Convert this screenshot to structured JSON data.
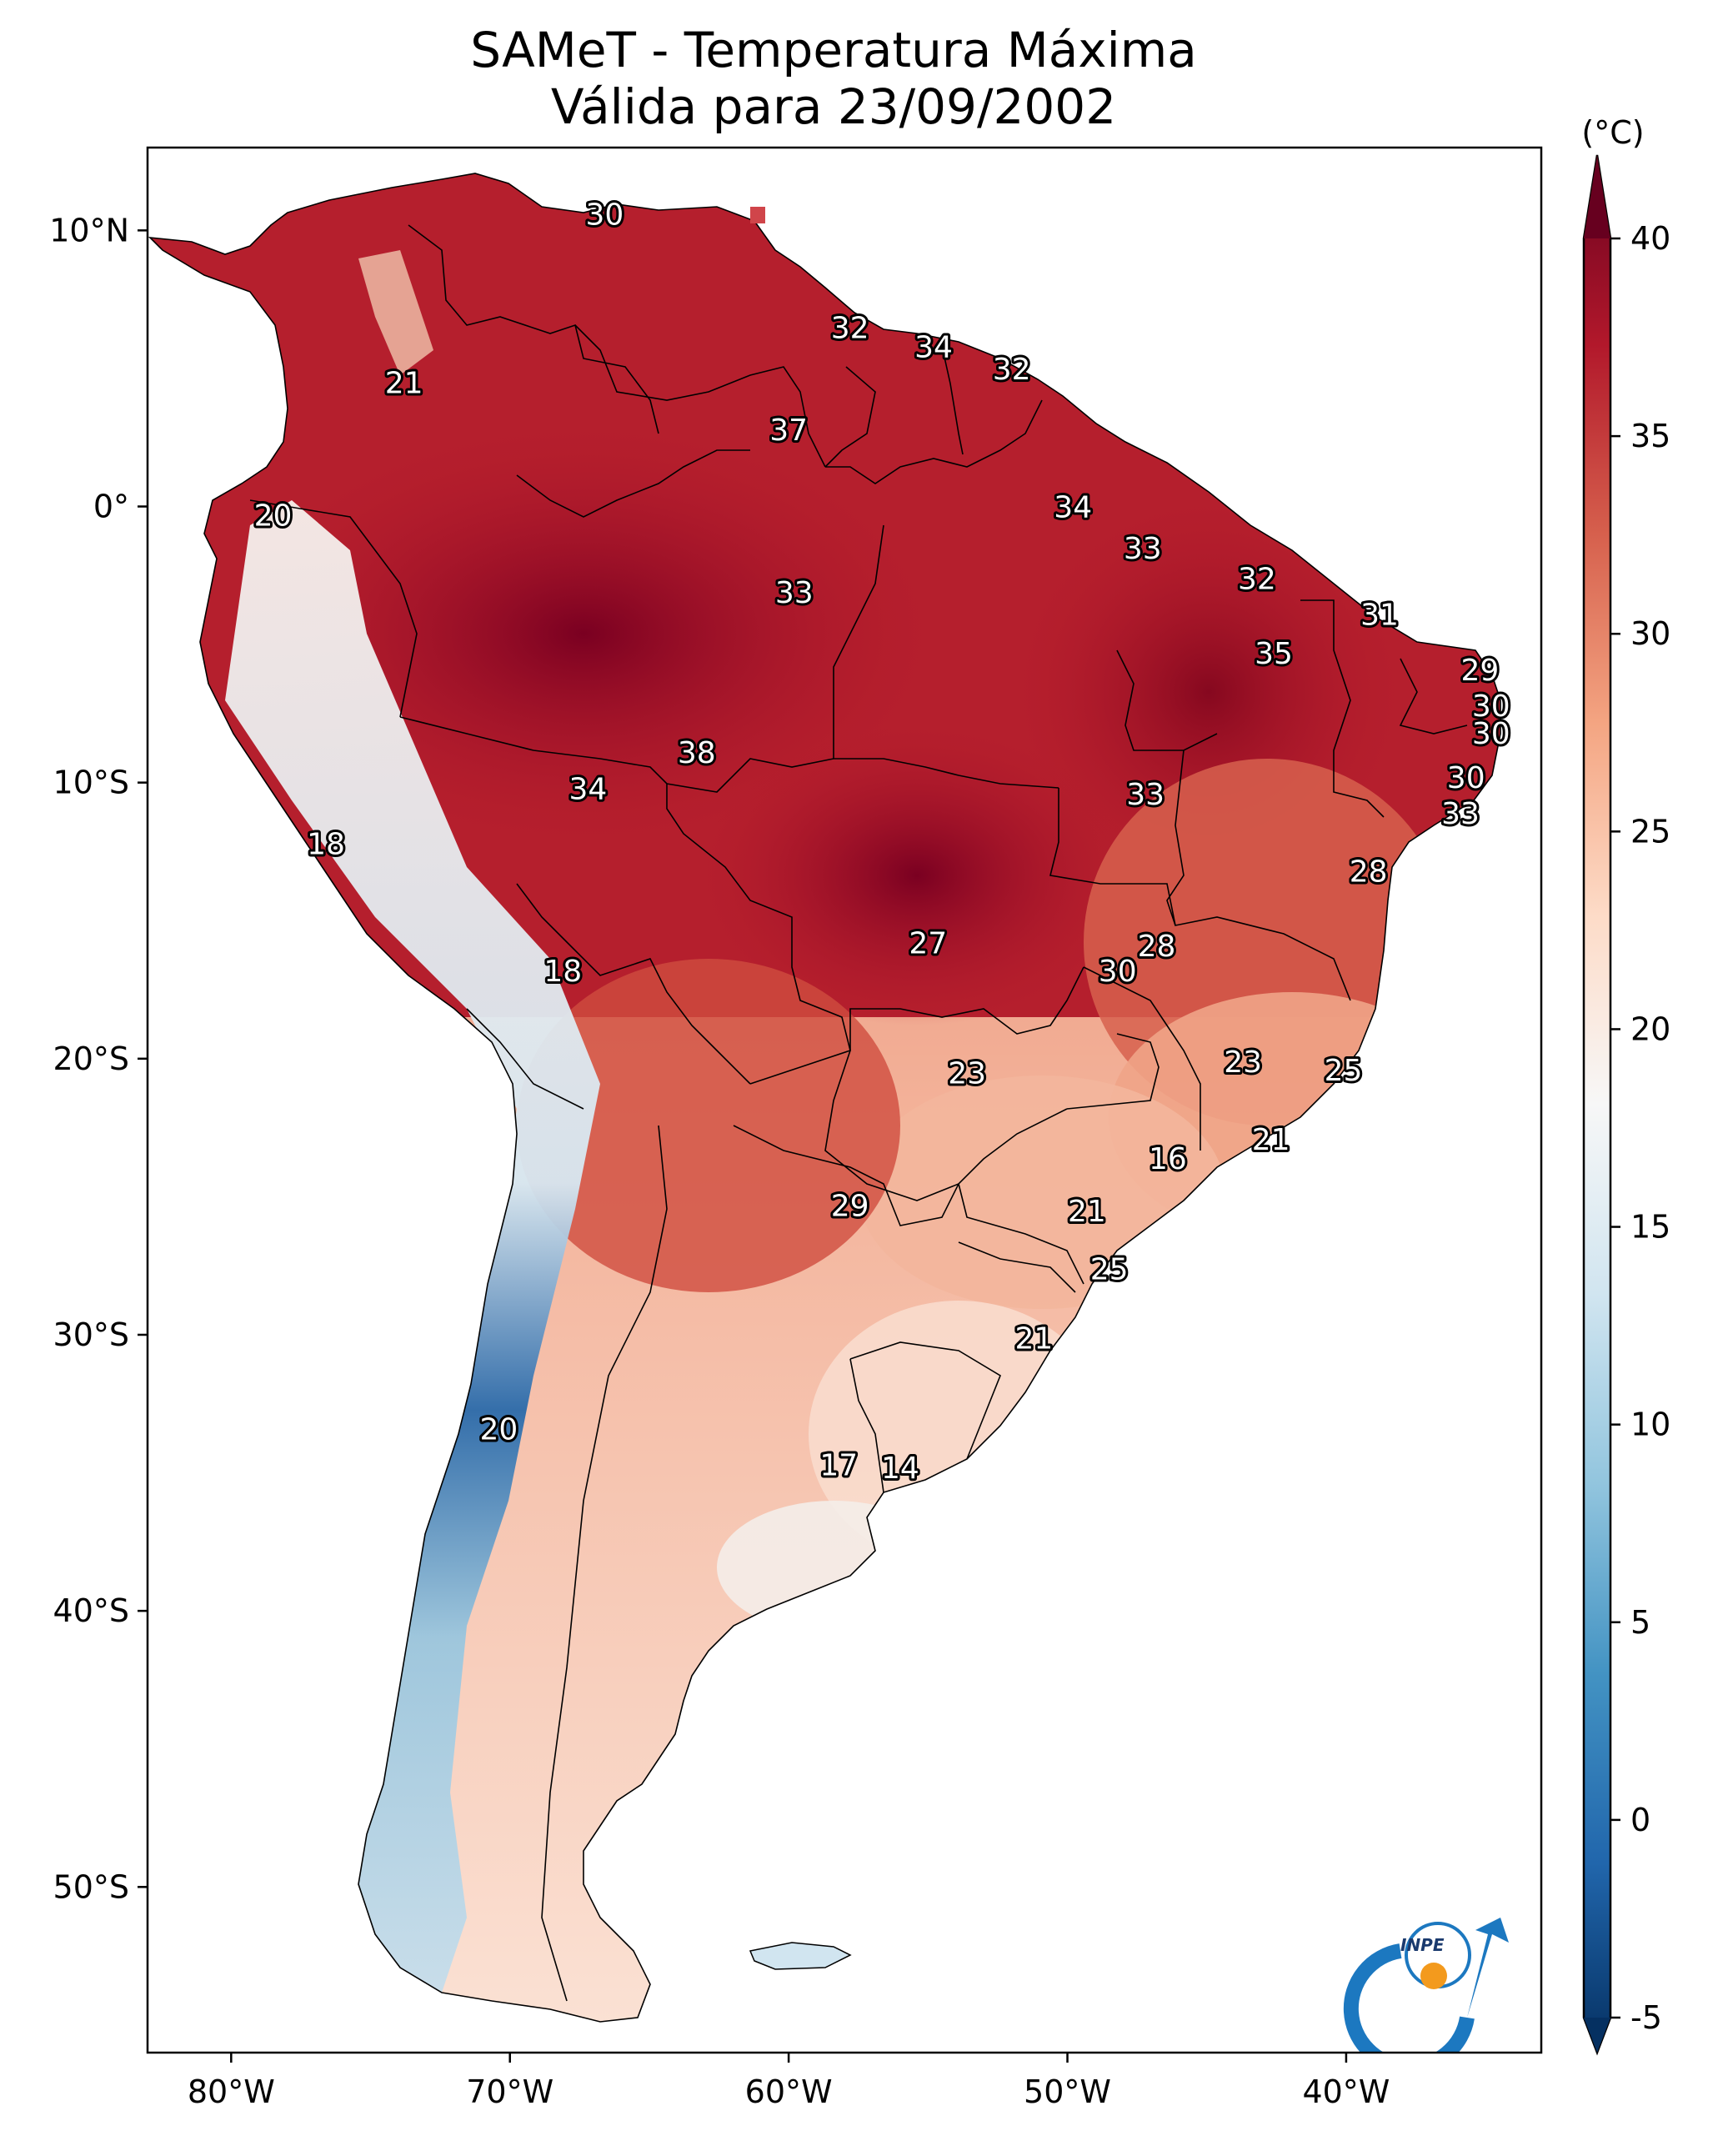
{
  "title": {
    "line1": "SAMeT - Temperatura Máxima",
    "line2": "Válida para 23/09/2002"
  },
  "axes": {
    "lon_labels": [
      "80°W",
      "70°W",
      "60°W",
      "50°W",
      "40°W"
    ],
    "lat_labels": [
      "10°N",
      "0°",
      "10°S",
      "20°S",
      "30°S",
      "40°S",
      "50°S"
    ]
  },
  "colorbar": {
    "unit": "(°C)",
    "range": [
      -5,
      40
    ],
    "ticks": [
      "40",
      "35",
      "30",
      "25",
      "20",
      "15",
      "10",
      "5",
      "0",
      "-5"
    ],
    "colors": [
      "#67001f",
      "#b2182b",
      "#d6604d",
      "#f4a582",
      "#fddbc7",
      "#f7f7f7",
      "#d1e5f0",
      "#92c5de",
      "#4393c3",
      "#2166ac",
      "#053061"
    ]
  },
  "logo": {
    "text": "INPE"
  },
  "chart_data": {
    "type": "heatmap",
    "title": "SAMeT - Temperatura Máxima Válida para 23/09/2002",
    "xlabel": "",
    "ylabel": "",
    "xlim": [
      -83,
      -33
    ],
    "ylim": [
      -56,
      13
    ],
    "xticks": [
      -80,
      -70,
      -60,
      -50,
      -40
    ],
    "yticks": [
      10,
      0,
      -10,
      -20,
      -30,
      -40,
      -50
    ],
    "colorbar": {
      "min": -5,
      "max": 40,
      "ticks": [
        -5,
        0,
        5,
        10,
        15,
        20,
        25,
        30,
        35,
        40
      ],
      "unit": "°C"
    },
    "annotations": [
      {
        "label": "30",
        "lon": -66.6,
        "lat": 10.6
      },
      {
        "label": "21",
        "lon": -73.8,
        "lat": 4.5
      },
      {
        "label": "32",
        "lon": -57.8,
        "lat": 6.5
      },
      {
        "label": "34",
        "lon": -54.8,
        "lat": 5.8
      },
      {
        "label": "32",
        "lon": -52.0,
        "lat": 5.0
      },
      {
        "label": "37",
        "lon": -60.0,
        "lat": 2.8
      },
      {
        "label": "20",
        "lon": -78.5,
        "lat": -0.3
      },
      {
        "label": "34",
        "lon": -49.8,
        "lat": 0.0
      },
      {
        "label": "33",
        "lon": -47.3,
        "lat": -1.5
      },
      {
        "label": "33",
        "lon": -59.8,
        "lat": -3.1
      },
      {
        "label": "32",
        "lon": -43.2,
        "lat": -2.6
      },
      {
        "label": "31",
        "lon": -38.8,
        "lat": -3.9
      },
      {
        "label": "35",
        "lon": -42.6,
        "lat": -5.3
      },
      {
        "label": "29",
        "lon": -35.2,
        "lat": -5.9
      },
      {
        "label": "30",
        "lon": -34.8,
        "lat": -7.2
      },
      {
        "label": "30",
        "lon": -34.8,
        "lat": -8.2
      },
      {
        "label": "38",
        "lon": -63.3,
        "lat": -8.9
      },
      {
        "label": "34",
        "lon": -67.2,
        "lat": -10.2
      },
      {
        "label": "30",
        "lon": -35.7,
        "lat": -9.8
      },
      {
        "label": "33",
        "lon": -47.2,
        "lat": -10.4
      },
      {
        "label": "33",
        "lon": -35.9,
        "lat": -11.1
      },
      {
        "label": "18",
        "lon": -76.6,
        "lat": -12.2
      },
      {
        "label": "28",
        "lon": -39.2,
        "lat": -13.2
      },
      {
        "label": "27",
        "lon": -55.0,
        "lat": -15.8
      },
      {
        "label": "28",
        "lon": -46.8,
        "lat": -15.9
      },
      {
        "label": "30",
        "lon": -48.2,
        "lat": -16.8
      },
      {
        "label": "18",
        "lon": -68.1,
        "lat": -16.8
      },
      {
        "label": "23",
        "lon": -43.7,
        "lat": -20.1
      },
      {
        "label": "23",
        "lon": -53.6,
        "lat": -20.5
      },
      {
        "label": "25",
        "lon": -40.1,
        "lat": -20.4
      },
      {
        "label": "21",
        "lon": -42.7,
        "lat": -22.9
      },
      {
        "label": "16",
        "lon": -46.4,
        "lat": -23.6
      },
      {
        "label": "29",
        "lon": -57.8,
        "lat": -25.3
      },
      {
        "label": "21",
        "lon": -49.3,
        "lat": -25.5
      },
      {
        "label": "25",
        "lon": -48.5,
        "lat": -27.6
      },
      {
        "label": "21",
        "lon": -51.2,
        "lat": -30.1
      },
      {
        "label": "20",
        "lon": -70.4,
        "lat": -33.4
      },
      {
        "label": "17",
        "lon": -58.2,
        "lat": -34.7
      },
      {
        "label": "14",
        "lon": -56.0,
        "lat": -34.8
      }
    ]
  }
}
